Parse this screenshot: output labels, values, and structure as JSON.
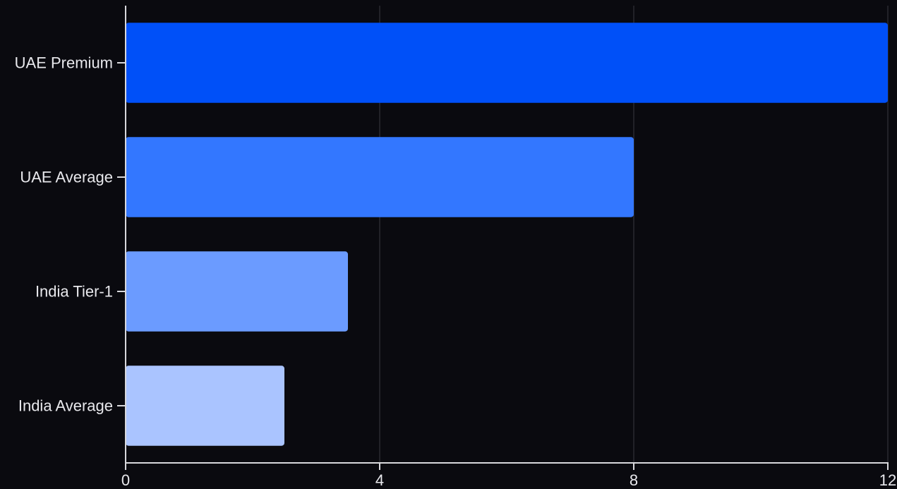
{
  "chart_data": {
    "type": "bar",
    "orientation": "horizontal",
    "categories": [
      "UAE Premium",
      "UAE Average",
      "India Tier-1",
      "India Average"
    ],
    "values": [
      12,
      8,
      3.5,
      2.5
    ],
    "colors": [
      "#0050f8",
      "#3377ff",
      "#6b9bff",
      "#aac4ff"
    ],
    "xlim": [
      0,
      12
    ],
    "xticks": [
      0,
      4,
      8,
      12
    ],
    "grid": true,
    "background": "#0a0a0f"
  }
}
